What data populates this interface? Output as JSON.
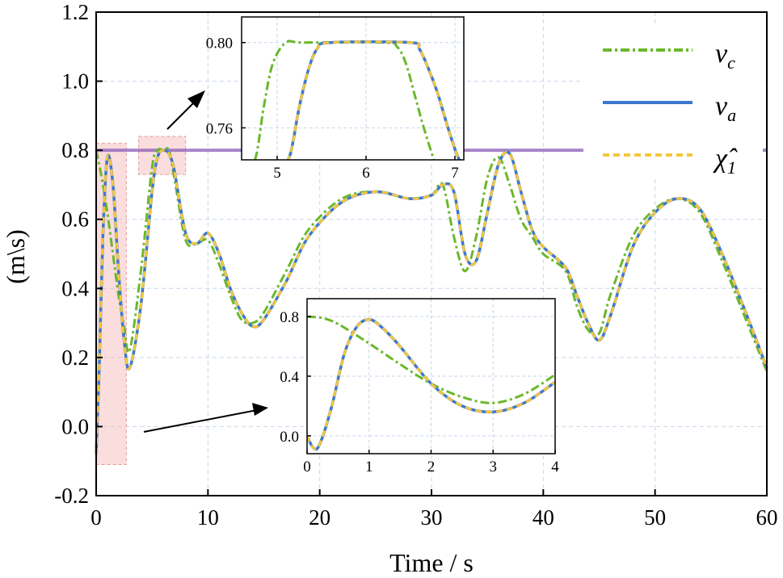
{
  "chart_data": {
    "type": "line",
    "title": "",
    "xlabel": "Time / s",
    "ylabel": "(m\\s)",
    "xlim": [
      0,
      60
    ],
    "ylim": [
      -0.2,
      1.2
    ],
    "xticks": [
      "0",
      "10",
      "20",
      "30",
      "40",
      "50",
      "60"
    ],
    "yticks": [
      "-0.2",
      "0.0",
      "0.2",
      "0.4",
      "0.6",
      "0.8",
      "1.0",
      "1.2"
    ],
    "grid": true,
    "reference_line": {
      "y": 0.8,
      "color": "#9467bd"
    },
    "colors": {
      "vc": "#6ab82a",
      "va": "#3b78d0",
      "chi": "#f5c63c",
      "highlight": "#f4b4b4"
    },
    "legend": {
      "position": "top-right",
      "entries": [
        {
          "key": "vc",
          "symbol": "v",
          "sub": "c"
        },
        {
          "key": "va",
          "symbol": "v",
          "sub": "a"
        },
        {
          "key": "chi",
          "symbol": "χ̂",
          "sub": "1"
        }
      ]
    },
    "series": [
      {
        "name": "v_c",
        "key": "vc",
        "x": [
          0,
          0.5,
          1,
          1.5,
          2,
          2.5,
          3,
          4,
          5,
          5.5,
          6,
          6.5,
          7,
          8,
          9,
          10,
          11,
          12,
          13,
          14,
          15,
          17,
          19,
          22,
          25,
          28,
          30,
          31,
          32,
          33,
          34,
          35,
          36,
          37,
          38,
          39,
          40,
          42,
          43,
          44,
          45,
          46,
          48,
          50,
          52,
          54,
          56,
          58,
          60
        ],
        "values": [
          0.8,
          0.72,
          0.62,
          0.5,
          0.38,
          0.29,
          0.22,
          0.45,
          0.75,
          0.8,
          0.8,
          0.8,
          0.72,
          0.54,
          0.53,
          0.54,
          0.47,
          0.38,
          0.31,
          0.3,
          0.33,
          0.45,
          0.57,
          0.66,
          0.68,
          0.66,
          0.67,
          0.7,
          0.55,
          0.45,
          0.55,
          0.72,
          0.78,
          0.7,
          0.6,
          0.55,
          0.5,
          0.45,
          0.35,
          0.28,
          0.27,
          0.38,
          0.55,
          0.63,
          0.66,
          0.62,
          0.48,
          0.32,
          0.16
        ]
      },
      {
        "name": "v_a",
        "key": "va",
        "x": [
          0,
          0.3,
          0.6,
          1,
          1.5,
          2,
          2.5,
          3,
          4,
          5,
          5.5,
          6,
          6.5,
          7,
          8,
          9,
          10,
          11,
          12,
          13,
          14,
          15,
          17,
          19,
          22,
          25,
          28,
          30,
          31,
          32,
          33,
          34,
          35,
          36,
          37,
          38,
          39,
          40,
          42,
          43,
          44,
          45,
          46,
          48,
          50,
          52,
          54,
          56,
          58,
          60
        ],
        "values": [
          -0.08,
          0.2,
          0.55,
          0.78,
          0.7,
          0.45,
          0.25,
          0.17,
          0.35,
          0.68,
          0.78,
          0.8,
          0.79,
          0.74,
          0.56,
          0.53,
          0.56,
          0.5,
          0.4,
          0.33,
          0.29,
          0.31,
          0.42,
          0.55,
          0.65,
          0.68,
          0.66,
          0.67,
          0.7,
          0.68,
          0.5,
          0.48,
          0.62,
          0.76,
          0.79,
          0.68,
          0.57,
          0.52,
          0.46,
          0.38,
          0.3,
          0.25,
          0.32,
          0.52,
          0.62,
          0.66,
          0.63,
          0.5,
          0.34,
          0.17
        ]
      },
      {
        "name": "χ̂_1",
        "key": "chi",
        "x": [
          0,
          0.3,
          0.6,
          1,
          1.5,
          2,
          2.5,
          3,
          4,
          5,
          5.5,
          6,
          6.5,
          7,
          8,
          9,
          10,
          11,
          12,
          13,
          14,
          15,
          17,
          19,
          22,
          25,
          28,
          30,
          31,
          32,
          33,
          34,
          35,
          36,
          37,
          38,
          39,
          40,
          42,
          43,
          44,
          45,
          46,
          48,
          50,
          52,
          54,
          56,
          58,
          60
        ],
        "values": [
          -0.08,
          0.2,
          0.55,
          0.78,
          0.7,
          0.45,
          0.25,
          0.17,
          0.35,
          0.68,
          0.78,
          0.8,
          0.79,
          0.74,
          0.56,
          0.53,
          0.56,
          0.5,
          0.4,
          0.33,
          0.29,
          0.31,
          0.42,
          0.55,
          0.65,
          0.68,
          0.66,
          0.67,
          0.7,
          0.68,
          0.5,
          0.48,
          0.62,
          0.76,
          0.79,
          0.68,
          0.57,
          0.52,
          0.46,
          0.38,
          0.3,
          0.25,
          0.32,
          0.52,
          0.62,
          0.66,
          0.63,
          0.5,
          0.34,
          0.17
        ]
      }
    ],
    "highlight_regions": [
      {
        "x": [
          0,
          2.7
        ],
        "y": [
          -0.11,
          0.82
        ]
      },
      {
        "x": [
          3.8,
          8.0
        ],
        "y": [
          0.73,
          0.84
        ]
      }
    ],
    "insets": [
      {
        "name": "inset-top",
        "xlim": [
          4.6,
          7.1
        ],
        "ylim": [
          0.745,
          0.812
        ],
        "xticks": [
          "5",
          "6",
          "7"
        ],
        "yticks": [
          "0.76",
          "0.80"
        ],
        "series": [
          {
            "key": "vc",
            "x": [
              4.6,
              4.75,
              4.85,
              4.95,
              5.1,
              5.3,
              6.2,
              6.35,
              6.45,
              6.55,
              6.65,
              6.8
            ],
            "values": [
              0.74,
              0.745,
              0.77,
              0.79,
              0.8,
              0.8,
              0.8,
              0.798,
              0.79,
              0.775,
              0.76,
              0.74
            ]
          },
          {
            "key": "va",
            "x": [
              5.05,
              5.15,
              5.25,
              5.35,
              5.45,
              5.6,
              6.5,
              6.6,
              6.7,
              6.8,
              6.9,
              7.0,
              7.1
            ],
            "values": [
              0.74,
              0.748,
              0.77,
              0.787,
              0.797,
              0.8,
              0.8,
              0.797,
              0.788,
              0.777,
              0.763,
              0.75,
              0.74
            ]
          },
          {
            "key": "chi",
            "x": [
              5.05,
              5.15,
              5.25,
              5.35,
              5.45,
              5.6,
              6.5,
              6.6,
              6.7,
              6.8,
              6.9,
              7.0,
              7.1
            ],
            "values": [
              0.74,
              0.748,
              0.77,
              0.787,
              0.797,
              0.8,
              0.8,
              0.797,
              0.788,
              0.777,
              0.763,
              0.75,
              0.74
            ]
          }
        ]
      },
      {
        "name": "inset-bottom",
        "xlim": [
          0,
          4
        ],
        "ylim": [
          -0.12,
          0.92
        ],
        "xticks": [
          "0",
          "1",
          "2",
          "3",
          "4"
        ],
        "yticks": [
          "0.0",
          "0.4",
          "0.8"
        ],
        "series": [
          {
            "key": "vc",
            "x": [
              0,
              0.25,
              0.5,
              1,
              1.5,
              2,
              2.5,
              3,
              3.5,
              4
            ],
            "values": [
              0.8,
              0.79,
              0.75,
              0.62,
              0.48,
              0.35,
              0.26,
              0.22,
              0.28,
              0.41
            ]
          },
          {
            "key": "va",
            "x": [
              0,
              0.1,
              0.2,
              0.4,
              0.6,
              0.8,
              1.0,
              1.2,
              1.5,
              2.0,
              2.5,
              3.0,
              3.5,
              4.0
            ],
            "values": [
              0.0,
              -0.08,
              -0.06,
              0.2,
              0.55,
              0.73,
              0.78,
              0.73,
              0.6,
              0.35,
              0.2,
              0.16,
              0.22,
              0.36
            ]
          },
          {
            "key": "chi",
            "x": [
              0,
              0.1,
              0.2,
              0.4,
              0.6,
              0.8,
              1.0,
              1.2,
              1.5,
              2.0,
              2.5,
              3.0,
              3.5,
              4.0
            ],
            "values": [
              0.0,
              -0.08,
              -0.06,
              0.2,
              0.55,
              0.73,
              0.78,
              0.73,
              0.6,
              0.35,
              0.2,
              0.16,
              0.22,
              0.36
            ]
          }
        ]
      }
    ]
  }
}
